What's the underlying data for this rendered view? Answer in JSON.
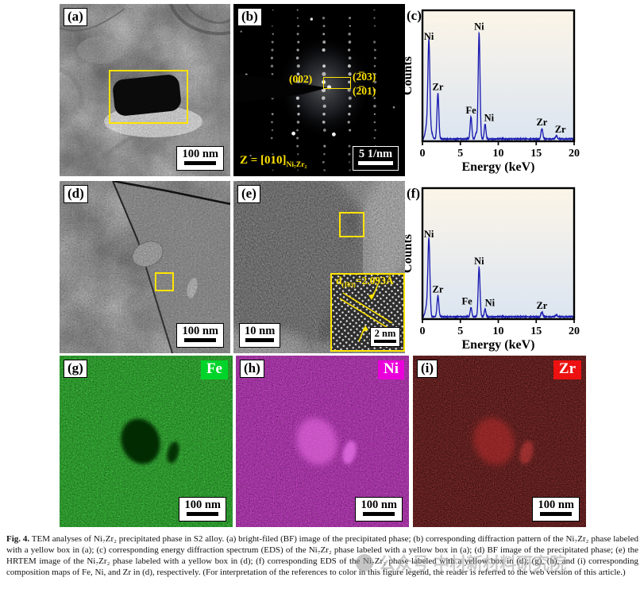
{
  "caption": {
    "label": "Fig. 4.",
    "text": "TEM analyses of Ni₇Zr₂ precipitated phase in S2 alloy. (a) bright-filed (BF) image of the precipitated phase; (b) corresponding diffraction pattern of the Ni₇Zr₂ phase labeled with a yellow box in (a); (c) corresponding energy diffraction spectrum (EDS) of the Ni₇Zr₂ phase labeled with a yellow box in (a); (d) BF image of the precipitated phase; (e) the HRTEM image of the Ni₇Zr₂ phase labeled with a yellow box in (d); (f) corresponding EDS of the Ni₇Zr₂ phase labeled with a yellow box in (d); (g), (h), and (i) corresponding composition maps of Fe, Ni, and Zr in (d), respectively. (For interpretation of the references to color in this figure legend, the reader is referred to the web version of this article.)"
  },
  "watermark": {
    "text": "公众号 中材新材料研究院"
  },
  "panels": {
    "a": {
      "label": "(a)",
      "scale_bar": "100 nm"
    },
    "b": {
      "label": "(b)",
      "scale_bar": "5 1/nm",
      "zone_axis_main": "Z = [010]",
      "zone_axis_sub": "Ni₇Zr₂",
      "spot_002": "(002)",
      "spot_203": "(2̅03)",
      "spot_201": "(2̅01)"
    },
    "c": {
      "label": "(c)"
    },
    "d": {
      "label": "(d)",
      "scale_bar": "100 nm"
    },
    "e": {
      "label": "(e)",
      "scale_bar": "10 nm",
      "inset_d_prefix": "d",
      "inset_d_sub": "(1̅03)",
      "inset_d_value": "=2.093Å",
      "inset_scale_bar": "2 nm"
    },
    "f": {
      "label": "(f)"
    },
    "g": {
      "label": "(g)",
      "element": "Fe",
      "scale_bar": "100 nm",
      "element_color": "#00d42a"
    },
    "h": {
      "label": "(h)",
      "element": "Ni",
      "scale_bar": "100 nm",
      "element_color": "#ea00da"
    },
    "i": {
      "label": "(i)",
      "element": "Zr",
      "scale_bar": "100 nm",
      "element_color": "#ed1111"
    }
  },
  "chart_data": [
    {
      "id": "c",
      "panel": "(c)",
      "type": "line",
      "title": "",
      "xlabel": "Energy (keV)",
      "ylabel": "Counts",
      "xlim": [
        0,
        20
      ],
      "xticks": [
        0,
        5,
        10,
        15,
        20
      ],
      "grid": false,
      "legend": "none",
      "bg_top": "#fcf5e8",
      "bg_bottom": "#dbe5f1",
      "line_color": "#1b1bb0",
      "label_color": "#cc1111",
      "peaks": [
        {
          "element": "Ni",
          "energy_keV": 0.85,
          "rel_height": 0.78,
          "sigma": 0.13
        },
        {
          "element": "",
          "energy_keV": 0.55,
          "rel_height": 0.1,
          "sigma": 0.18
        },
        {
          "element": "",
          "energy_keV": 1.2,
          "rel_height": 0.05,
          "sigma": 0.15
        },
        {
          "element": "Zr",
          "energy_keV": 2.04,
          "rel_height": 0.37,
          "sigma": 0.12
        },
        {
          "element": "Fe",
          "energy_keV": 6.4,
          "rel_height": 0.18,
          "sigma": 0.11
        },
        {
          "element": "",
          "energy_keV": 7.06,
          "rel_height": 0.045,
          "sigma": 0.11
        },
        {
          "element": "Ni",
          "energy_keV": 7.47,
          "rel_height": 0.86,
          "sigma": 0.12
        },
        {
          "element": "Ni",
          "energy_keV": 8.26,
          "rel_height": 0.12,
          "sigma": 0.11,
          "label_dx": 5
        },
        {
          "element": "Zr",
          "energy_keV": 15.75,
          "rel_height": 0.085,
          "sigma": 0.12
        },
        {
          "element": "Zr",
          "energy_keV": 17.66,
          "rel_height": 0.025,
          "sigma": 0.12,
          "label_dx": 5
        }
      ]
    },
    {
      "id": "f",
      "panel": "(f)",
      "type": "line",
      "title": "",
      "xlabel": "Energy (keV)",
      "ylabel": "Counts",
      "xlim": [
        0,
        20
      ],
      "xticks": [
        0,
        5,
        10,
        15,
        20
      ],
      "grid": false,
      "legend": "none",
      "bg_top": "#fcf5e8",
      "bg_bottom": "#dbe5f1",
      "line_color": "#1b1bb0",
      "label_color": "#cc1111",
      "peaks": [
        {
          "element": "Ni",
          "energy_keV": 0.85,
          "rel_height": 0.62,
          "sigma": 0.13
        },
        {
          "element": "",
          "energy_keV": 0.55,
          "rel_height": 0.08,
          "sigma": 0.18
        },
        {
          "element": "Zr",
          "energy_keV": 2.04,
          "rel_height": 0.17,
          "sigma": 0.12
        },
        {
          "element": "Fe",
          "energy_keV": 6.4,
          "rel_height": 0.075,
          "sigma": 0.11,
          "label_dx": -5
        },
        {
          "element": "Ni",
          "energy_keV": 7.47,
          "rel_height": 0.4,
          "sigma": 0.12
        },
        {
          "element": "Ni",
          "energy_keV": 8.26,
          "rel_height": 0.06,
          "sigma": 0.11,
          "label_dx": 6
        },
        {
          "element": "Zr",
          "energy_keV": 15.75,
          "rel_height": 0.04,
          "sigma": 0.12
        },
        {
          "element": "",
          "energy_keV": 17.66,
          "rel_height": 0.015,
          "sigma": 0.12
        }
      ]
    }
  ]
}
